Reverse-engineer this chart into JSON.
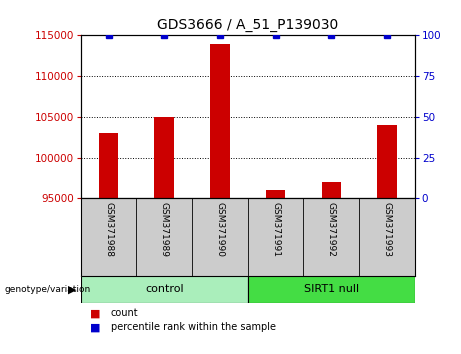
{
  "title": "GDS3666 / A_51_P139030",
  "samples": [
    "GSM371988",
    "GSM371989",
    "GSM371990",
    "GSM371991",
    "GSM371992",
    "GSM371993"
  ],
  "counts": [
    103000,
    105000,
    114000,
    96000,
    97000,
    104000
  ],
  "percentile_ranks": [
    100,
    100,
    100,
    100,
    100,
    100
  ],
  "ylim_left": [
    95000,
    115000
  ],
  "ylim_right": [
    0,
    100
  ],
  "yticks_left": [
    95000,
    100000,
    105000,
    110000,
    115000
  ],
  "yticks_right": [
    0,
    25,
    50,
    75,
    100
  ],
  "bar_color": "#cc0000",
  "marker_color": "#0000cc",
  "groups": [
    {
      "label": "control",
      "indices": [
        0,
        1,
        2
      ],
      "color": "#aaeebb"
    },
    {
      "label": "SIRT1 null",
      "indices": [
        3,
        4,
        5
      ],
      "color": "#44dd44"
    }
  ],
  "xlabel_area_color": "#cccccc",
  "background_color": "#ffffff",
  "grid_color": "#000000",
  "title_fontsize": 10,
  "tick_fontsize": 7.5,
  "legend_count_color": "#cc0000",
  "legend_percentile_color": "#0000cc",
  "bar_width": 0.35
}
